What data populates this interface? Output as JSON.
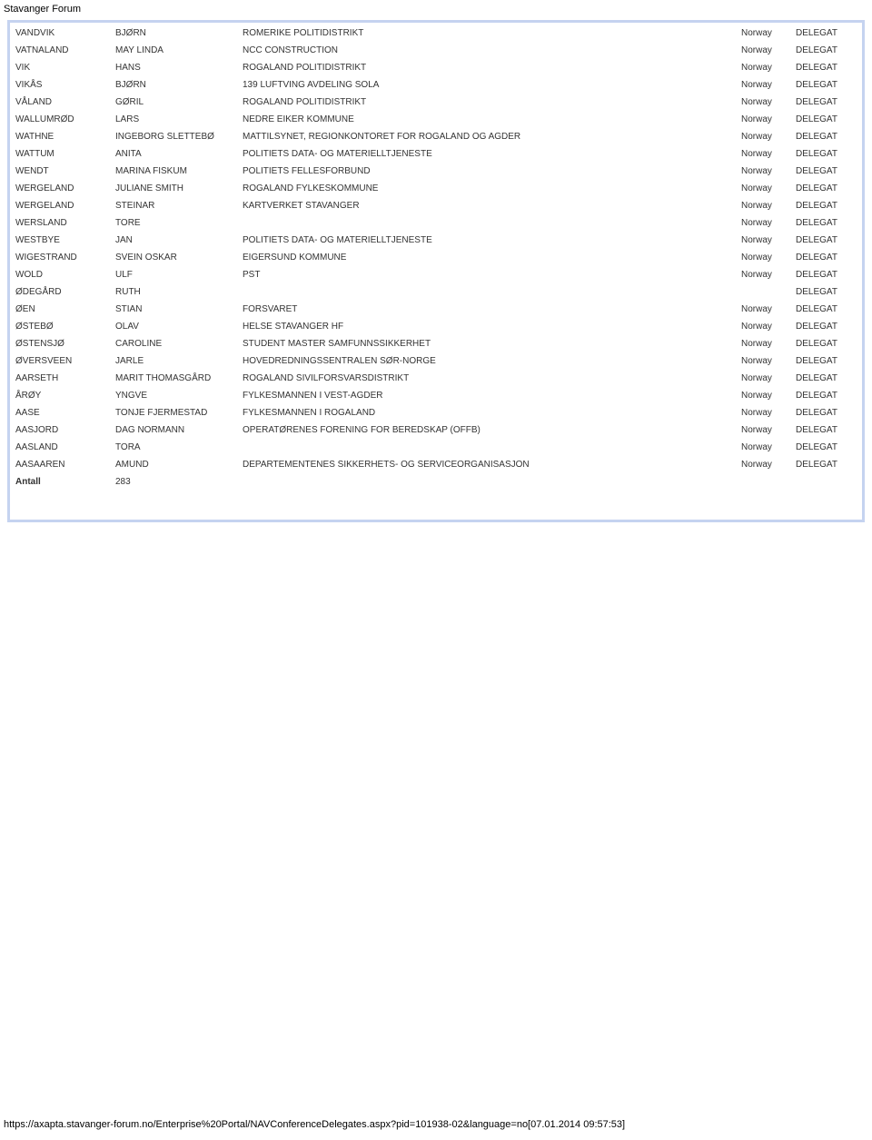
{
  "header_title": "Stavanger Forum",
  "footer_url": "https://axapta.stavanger-forum.no/Enterprise%20Portal/NAVConferenceDelegates.aspx?pid=101938-02&language=no[07.01.2014 09:57:53]",
  "antall_label": "Antall",
  "antall_value": "283",
  "rows": [
    {
      "c1": "VANDVIK",
      "c2": "BJØRN",
      "c3": "ROMERIKE POLITIDISTRIKT",
      "c4": "Norway",
      "c5": "DELEGAT"
    },
    {
      "c1": "VATNALAND",
      "c2": "MAY LINDA",
      "c3": "NCC CONSTRUCTION",
      "c4": "Norway",
      "c5": "DELEGAT"
    },
    {
      "c1": "VIK",
      "c2": "HANS",
      "c3": "ROGALAND POLITIDISTRIKT",
      "c4": "Norway",
      "c5": "DELEGAT"
    },
    {
      "c1": "VIKÅS",
      "c2": "BJØRN",
      "c3": "139 LUFTVING AVDELING SOLA",
      "c4": "Norway",
      "c5": "DELEGAT"
    },
    {
      "c1": "VÅLAND",
      "c2": "GØRIL",
      "c3": "ROGALAND POLITIDISTRIKT",
      "c4": "Norway",
      "c5": "DELEGAT"
    },
    {
      "c1": "WALLUMRØD",
      "c2": "LARS",
      "c3": "NEDRE EIKER KOMMUNE",
      "c4": "Norway",
      "c5": "DELEGAT"
    },
    {
      "c1": "WATHNE",
      "c2": "INGEBORG SLETTEBØ",
      "c3": "MATTILSYNET, REGIONKONTORET FOR ROGALAND OG AGDER",
      "c4": "Norway",
      "c5": "DELEGAT"
    },
    {
      "c1": "WATTUM",
      "c2": "ANITA",
      "c3": "POLITIETS DATA- OG MATERIELLTJENESTE",
      "c4": "Norway",
      "c5": "DELEGAT"
    },
    {
      "c1": "WENDT",
      "c2": "MARINA FISKUM",
      "c3": "POLITIETS FELLESFORBUND",
      "c4": "Norway",
      "c5": "DELEGAT"
    },
    {
      "c1": "WERGELAND",
      "c2": "JULIANE SMITH",
      "c3": "ROGALAND FYLKESKOMMUNE",
      "c4": "Norway",
      "c5": "DELEGAT"
    },
    {
      "c1": "WERGELAND",
      "c2": "STEINAR",
      "c3": "KARTVERKET STAVANGER",
      "c4": "Norway",
      "c5": "DELEGAT"
    },
    {
      "c1": "WERSLAND",
      "c2": "TORE",
      "c3": "",
      "c4": "Norway",
      "c5": "DELEGAT"
    },
    {
      "c1": "WESTBYE",
      "c2": "JAN",
      "c3": "POLITIETS DATA- OG MATERIELLTJENESTE",
      "c4": "Norway",
      "c5": "DELEGAT"
    },
    {
      "c1": "WIGESTRAND",
      "c2": "SVEIN OSKAR",
      "c3": "EIGERSUND KOMMUNE",
      "c4": "Norway",
      "c5": "DELEGAT"
    },
    {
      "c1": "WOLD",
      "c2": "ULF",
      "c3": "PST",
      "c4": "Norway",
      "c5": "DELEGAT"
    },
    {
      "c1": "ØDEGÅRD",
      "c2": "RUTH",
      "c3": "",
      "c4": "",
      "c5": "DELEGAT"
    },
    {
      "c1": "ØEN",
      "c2": "STIAN",
      "c3": "FORSVARET",
      "c4": "Norway",
      "c5": "DELEGAT"
    },
    {
      "c1": "ØSTEBØ",
      "c2": "OLAV",
      "c3": "HELSE STAVANGER HF",
      "c4": "Norway",
      "c5": "DELEGAT"
    },
    {
      "c1": "ØSTENSJØ",
      "c2": "CAROLINE",
      "c3": "STUDENT MASTER SAMFUNNSSIKKERHET",
      "c4": "Norway",
      "c5": "DELEGAT"
    },
    {
      "c1": "ØVERSVEEN",
      "c2": "JARLE",
      "c3": "HOVEDREDNINGSSENTRALEN SØR-NORGE",
      "c4": "Norway",
      "c5": "DELEGAT"
    },
    {
      "c1": "AARSETH",
      "c2": "MARIT THOMASGÅRD",
      "c3": "ROGALAND SIVILFORSVARSDISTRIKT",
      "c4": "Norway",
      "c5": "DELEGAT"
    },
    {
      "c1": "ÅRØY",
      "c2": "YNGVE",
      "c3": "FYLKESMANNEN I VEST-AGDER",
      "c4": "Norway",
      "c5": "DELEGAT"
    },
    {
      "c1": "AASE",
      "c2": "TONJE FJERMESTAD",
      "c3": "FYLKESMANNEN I ROGALAND",
      "c4": "Norway",
      "c5": "DELEGAT"
    },
    {
      "c1": "AASJORD",
      "c2": "DAG NORMANN",
      "c3": "OPERATØRENES FORENING FOR BEREDSKAP (OFFB)",
      "c4": "Norway",
      "c5": "DELEGAT"
    },
    {
      "c1": "AASLAND",
      "c2": "TORA",
      "c3": "",
      "c4": "Norway",
      "c5": "DELEGAT"
    },
    {
      "c1": "AASAAREN",
      "c2": "AMUND",
      "c3": "DEPARTEMENTENES SIKKERHETS- OG SERVICEORGANISASJON",
      "c4": "Norway",
      "c5": "DELEGAT"
    }
  ]
}
